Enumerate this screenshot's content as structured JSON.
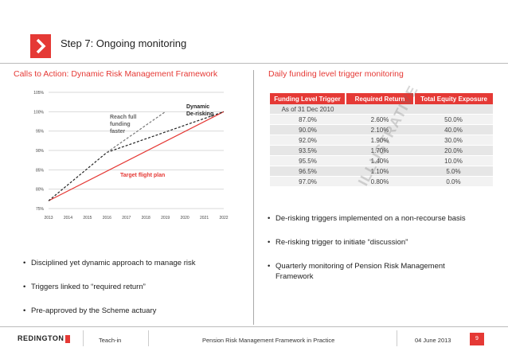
{
  "header": {
    "title": "Step 7: Ongoing monitoring"
  },
  "left": {
    "section_title": "Calls to Action: Dynamic Risk Management Framework",
    "bullets": [
      "Disciplined yet dynamic approach to manage risk",
      "Triggers linked to “required return”",
      "Pre-approved by the Scheme actuary"
    ]
  },
  "chart_data": {
    "type": "line",
    "x": [
      2013,
      2014,
      2015,
      2016,
      2017,
      2018,
      2019,
      2020,
      2021,
      2022
    ],
    "x_tick_labels": [
      "2013",
      "2014",
      "2015",
      "2016",
      "2017",
      "2018",
      "2019",
      "2020",
      "2021",
      "2022"
    ],
    "y_tick_labels": [
      "75%",
      "80%",
      "85%",
      "90%",
      "95%",
      "100%",
      "105%"
    ],
    "ylim": [
      75,
      105
    ],
    "xlim": [
      2013,
      2022
    ],
    "series": [
      {
        "name": "Target flight plan",
        "color": "#e53935",
        "style": "solid",
        "points": [
          [
            2013,
            77
          ],
          [
            2022,
            100
          ]
        ]
      },
      {
        "name": "Dynamic De-risking",
        "color": "#222222",
        "style": "dashed",
        "points": [
          [
            2013,
            77
          ],
          [
            2016,
            89.5
          ],
          [
            2022,
            100
          ]
        ]
      },
      {
        "name": "Reach full funding faster",
        "color": "#777777",
        "style": "dashed",
        "points": [
          [
            2016,
            89.5
          ],
          [
            2019,
            100
          ]
        ]
      }
    ],
    "annotations": {
      "dynamic_line1": "Dynamic",
      "dynamic_line2": "De-risking",
      "reach_line1": "Reach full",
      "reach_line2": "funding",
      "reach_line3": "faster",
      "target": "Target flight plan"
    },
    "grid": "horizontal"
  },
  "right": {
    "section_title": "Daily funding level trigger monitoring",
    "table": {
      "headers": [
        "Funding Level Trigger",
        "Required Return",
        "Total Equity Exposure"
      ],
      "as_of": "As of 31 Dec 2010",
      "rows": [
        [
          "87.0%",
          "2.60%",
          "50.0%"
        ],
        [
          "90.0%",
          "2.10%",
          "40.0%"
        ],
        [
          "92.0%",
          "1.90%",
          "30.0%"
        ],
        [
          "93.5%",
          "1.70%",
          "20.0%"
        ],
        [
          "95.5%",
          "1.40%",
          "10.0%"
        ],
        [
          "96.5%",
          "1.10%",
          "5.0%"
        ],
        [
          "97.0%",
          "0.80%",
          "0.0%"
        ]
      ]
    },
    "watermark": "ILLUSTRATIVE",
    "bullets": [
      "De-risking triggers implemented on a non-recourse basis",
      "Re-risking trigger to initiate “discussion”",
      "Quarterly monitoring of Pension Risk Management Framework"
    ]
  },
  "footer": {
    "logo": "REDINGTON",
    "left": "Teach-in",
    "center": "Pension Risk Management Framework in Practice",
    "date": "04 June 2013",
    "page": "9"
  },
  "colors": {
    "accent": "#e53935"
  }
}
